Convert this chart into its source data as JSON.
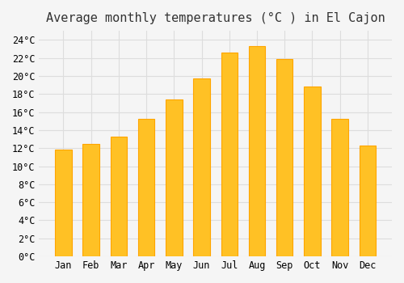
{
  "title": "Average monthly temperatures (°C ) in El Cajon",
  "months": [
    "Jan",
    "Feb",
    "Mar",
    "Apr",
    "May",
    "Jun",
    "Jul",
    "Aug",
    "Sep",
    "Oct",
    "Nov",
    "Dec"
  ],
  "values": [
    11.8,
    12.5,
    13.3,
    15.2,
    17.4,
    19.7,
    22.6,
    23.3,
    21.9,
    18.8,
    15.2,
    12.3
  ],
  "bar_color_face": "#FFC125",
  "bar_color_edge": "#FFA500",
  "background_color": "#F5F5F5",
  "grid_color": "#DDDDDD",
  "title_fontsize": 11,
  "tick_fontsize": 8.5,
  "ylim": [
    0,
    25
  ],
  "ytick_step": 2,
  "title_font": "monospace",
  "tick_font": "monospace"
}
